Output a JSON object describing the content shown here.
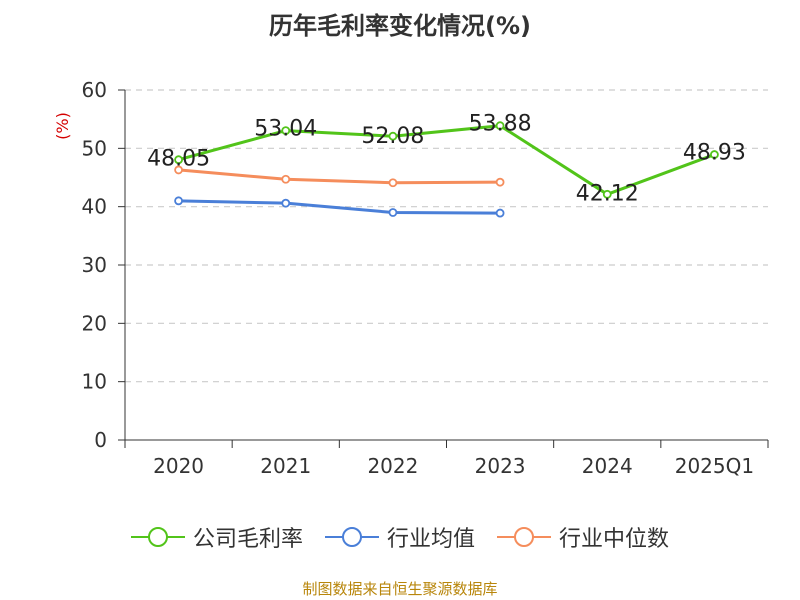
{
  "chart_data": {
    "type": "line",
    "title": "历年毛利率变化情况(%)",
    "ylabel": "(%)",
    "categories": [
      "2020",
      "2021",
      "2022",
      "2023",
      "2024",
      "2025Q1"
    ],
    "ylim": [
      0,
      60
    ],
    "yticks": [
      0,
      10,
      20,
      30,
      40,
      50,
      60
    ],
    "grid": true,
    "legend_position": "bottom",
    "series": [
      {
        "name": "公司毛利率",
        "color": "#52c41a",
        "values": [
          48.05,
          53.04,
          52.08,
          53.88,
          42.12,
          48.93
        ],
        "labels": [
          "48.05",
          "53.04",
          "52.08",
          "53.88",
          "42.12",
          "48.93"
        ]
      },
      {
        "name": "行业均值",
        "color": "#4a7fd8",
        "values": [
          41.0,
          40.6,
          39.0,
          38.9,
          null,
          null
        ],
        "labels": []
      },
      {
        "name": "行业中位数",
        "color": "#f58d5c",
        "values": [
          46.3,
          44.7,
          44.1,
          44.2,
          null,
          null
        ],
        "labels": []
      }
    ]
  },
  "footer": {
    "source": "制图数据来自恒生聚源数据库"
  }
}
